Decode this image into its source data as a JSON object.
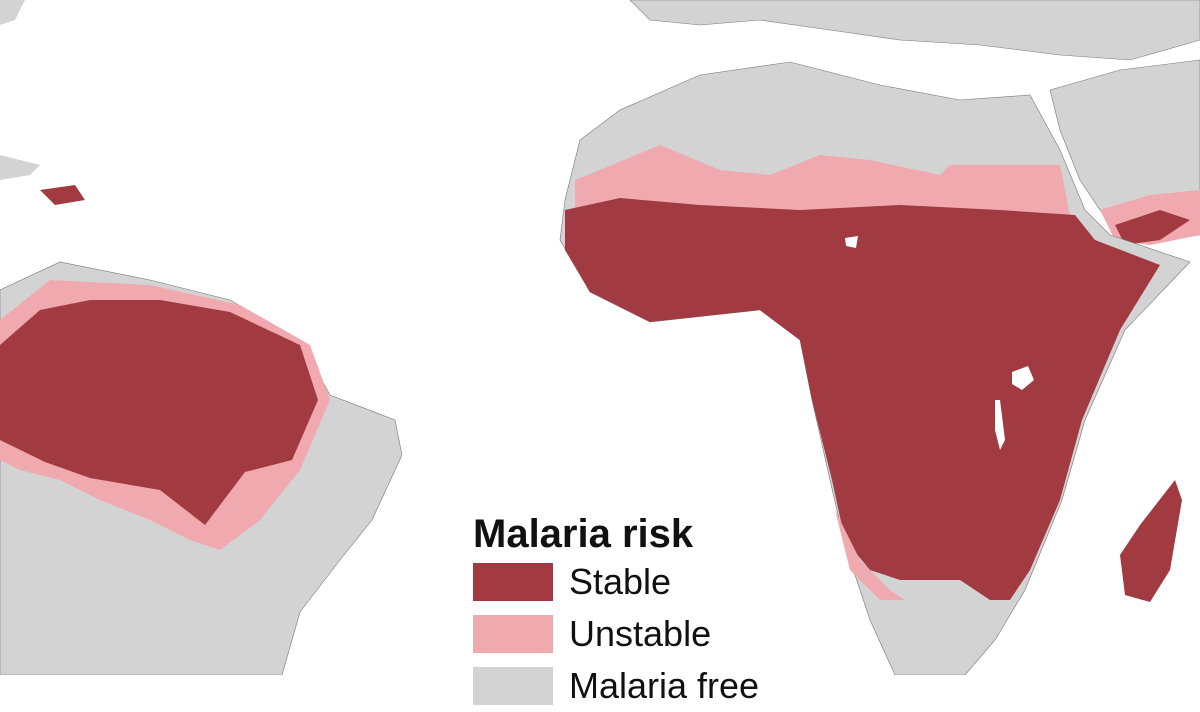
{
  "legend": {
    "title": "Malaria risk",
    "items": [
      {
        "label": "Stable",
        "color": "#a13a41"
      },
      {
        "label": "Unstable",
        "color": "#f0a9ae"
      },
      {
        "label": "Malaria free",
        "color": "#d3d3d3"
      }
    ]
  },
  "colors": {
    "land": "#d3d3d3",
    "ocean": "#ffffff",
    "border": "#555555"
  }
}
